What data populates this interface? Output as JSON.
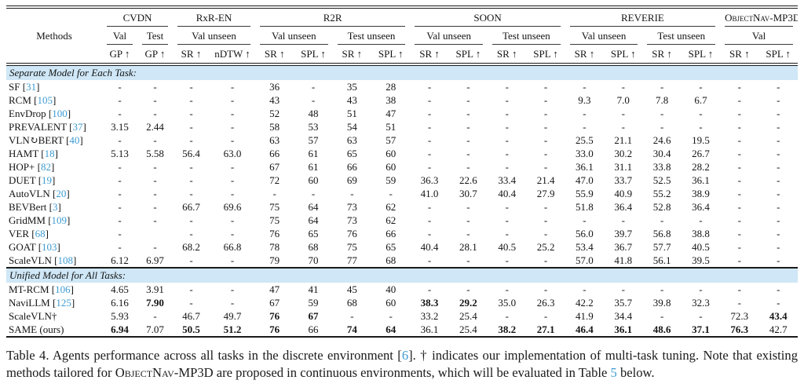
{
  "colors": {
    "citation": "#3d9bd2",
    "section_bg": "#cfe7f6",
    "rule": "#1a1a1a"
  },
  "table": {
    "methods_label": "Methods",
    "groups": [
      {
        "label": "CVDN",
        "colspan": 2,
        "smallcaps": false
      },
      {
        "label": "RxR-EN",
        "colspan": 2,
        "smallcaps": false
      },
      {
        "label": "R2R",
        "colspan": 4,
        "smallcaps": false
      },
      {
        "label": "SOON",
        "colspan": 4,
        "smallcaps": false
      },
      {
        "label": "REVERIE",
        "colspan": 4,
        "smallcaps": false
      },
      {
        "label": "ObjectNav-MP3D",
        "colspan": 2,
        "smallcaps": true
      }
    ],
    "splits": [
      {
        "label": "Val",
        "colspan": 1
      },
      {
        "label": "Test",
        "colspan": 1
      },
      {
        "label": "Val unseen",
        "colspan": 2
      },
      {
        "label": "Val unseen",
        "colspan": 2
      },
      {
        "label": "Test unseen",
        "colspan": 2
      },
      {
        "label": "Val unseen",
        "colspan": 2
      },
      {
        "label": "Test unseen",
        "colspan": 2
      },
      {
        "label": "Val unseen",
        "colspan": 2
      },
      {
        "label": "Test unseen",
        "colspan": 2
      },
      {
        "label": "Val",
        "colspan": 2
      }
    ],
    "metrics": [
      "GP ↑",
      "GP ↑",
      "SR ↑",
      "nDTW ↑",
      "SR ↑",
      "SPL ↑",
      "SR ↑",
      "SPL ↑",
      "SR ↑",
      "SPL ↑",
      "SR ↑",
      "SPL ↑",
      "SR ↑",
      "SPL ↑",
      "SR ↑",
      "SPL ↑",
      "SR ↑",
      "SPL ↑"
    ],
    "sections": [
      {
        "title": "Separate Model for Each Task:",
        "rows": [
          {
            "method": "SF",
            "ref": "31",
            "bold": [],
            "values": [
              "-",
              "-",
              "-",
              "-",
              "36",
              "-",
              "35",
              "28",
              "-",
              "-",
              "-",
              "-",
              "-",
              "-",
              "-",
              "-",
              "-",
              "-"
            ]
          },
          {
            "method": "RCM",
            "ref": "105",
            "bold": [],
            "values": [
              "-",
              "-",
              "-",
              "-",
              "43",
              "-",
              "43",
              "38",
              "-",
              "-",
              "-",
              "-",
              "9.3",
              "7.0",
              "7.8",
              "6.7",
              "-",
              "-"
            ]
          },
          {
            "method": "EnvDrop",
            "ref": "100",
            "bold": [],
            "values": [
              "-",
              "-",
              "-",
              "-",
              "52",
              "48",
              "51",
              "47",
              "-",
              "-",
              "-",
              "-",
              "-",
              "-",
              "-",
              "-",
              "-",
              "-"
            ]
          },
          {
            "method": "PREVALENT",
            "ref": "37",
            "bold": [],
            "values": [
              "3.15",
              "2.44",
              "-",
              "-",
              "58",
              "53",
              "54",
              "51",
              "-",
              "-",
              "-",
              "-",
              "-",
              "-",
              "-",
              "-",
              "-",
              "-"
            ]
          },
          {
            "method": "VLN↻BERT",
            "ref": "40",
            "bold": [],
            "values": [
              "-",
              "-",
              "-",
              "-",
              "63",
              "57",
              "63",
              "57",
              "-",
              "-",
              "-",
              "-",
              "25.5",
              "21.1",
              "24.6",
              "19.5",
              "-",
              "-"
            ]
          },
          {
            "method": "HAMT",
            "ref": "18",
            "bold": [],
            "values": [
              "5.13",
              "5.58",
              "56.4",
              "63.0",
              "66",
              "61",
              "65",
              "60",
              "-",
              "-",
              "-",
              "-",
              "33.0",
              "30.2",
              "30.4",
              "26.7",
              "-",
              "-"
            ]
          },
          {
            "method": "HOP+",
            "ref": "82",
            "bold": [],
            "values": [
              "-",
              "-",
              "-",
              "-",
              "67",
              "61",
              "66",
              "60",
              "-",
              "-",
              "-",
              "-",
              "36.1",
              "31.1",
              "33.8",
              "28.2",
              "-",
              "-"
            ]
          },
          {
            "method": "DUET",
            "ref": "19",
            "bold": [],
            "values": [
              "-",
              "-",
              "-",
              "-",
              "72",
              "60",
              "69",
              "59",
              "36.3",
              "22.6",
              "33.4",
              "21.4",
              "47.0",
              "33.7",
              "52.5",
              "36.1",
              "-",
              "-"
            ]
          },
          {
            "method": "AutoVLN",
            "ref": "20",
            "bold": [],
            "values": [
              "-",
              "-",
              "-",
              "-",
              "-",
              "-",
              "-",
              "-",
              "41.0",
              "30.7",
              "40.4",
              "27.9",
              "55.9",
              "40.9",
              "55.2",
              "38.9",
              "-",
              "-"
            ]
          },
          {
            "method": "BEVBert",
            "ref": "3",
            "bold": [],
            "values": [
              "-",
              "-",
              "66.7",
              "69.6",
              "75",
              "64",
              "73",
              "62",
              "-",
              "-",
              "-",
              "-",
              "51.8",
              "36.4",
              "52.8",
              "36.4",
              "-",
              "-"
            ]
          },
          {
            "method": "GridMM",
            "ref": "109",
            "bold": [],
            "values": [
              "-",
              "-",
              "-",
              "-",
              "75",
              "64",
              "73",
              "62",
              "-",
              "-",
              "-",
              "-",
              "-",
              "-",
              "-",
              "-",
              "-",
              "-"
            ]
          },
          {
            "method": "VER",
            "ref": "68",
            "bold": [],
            "values": [
              "-",
              "",
              "-",
              "-",
              "76",
              "65",
              "76",
              "66",
              "-",
              "-",
              "-",
              "-",
              "56.0",
              "39.7",
              "56.8",
              "38.8",
              "-",
              "-"
            ]
          },
          {
            "method": "GOAT",
            "ref": "103",
            "bold": [],
            "values": [
              "-",
              "-",
              "68.2",
              "66.8",
              "78",
              "68",
              "75",
              "65",
              "40.4",
              "28.1",
              "40.5",
              "25.2",
              "53.4",
              "36.7",
              "57.7",
              "40.5",
              "-",
              "-"
            ]
          },
          {
            "method": "ScaleVLN",
            "ref": "108",
            "bold": [],
            "values": [
              "6.12",
              "6.97",
              "-",
              "-",
              "79",
              "70",
              "77",
              "68",
              "-",
              "-",
              "-",
              "-",
              "57.0",
              "41.8",
              "56.1",
              "39.5",
              "-",
              "-"
            ]
          }
        ]
      },
      {
        "title": "Unified Model for All Tasks:",
        "rows": [
          {
            "method": "MT-RCM",
            "ref": "106",
            "bold": [],
            "values": [
              "4.65",
              "3.91",
              "-",
              "-",
              "47",
              "41",
              "45",
              "40",
              "-",
              "-",
              "-",
              "-",
              "-",
              "-",
              "-",
              "-",
              "-",
              "-"
            ]
          },
          {
            "method": "NaviLLM",
            "ref": "125",
            "bold": [
              1,
              8,
              9
            ],
            "values": [
              "6.16",
              "7.90",
              "-",
              "-",
              "67",
              "59",
              "68",
              "60",
              "38.3",
              "29.2",
              "35.0",
              "26.3",
              "42.2",
              "35.7",
              "39.8",
              "32.3",
              "-",
              "-"
            ]
          },
          {
            "method": "ScaleVLN†",
            "ref": "",
            "bold": [
              4,
              5,
              17
            ],
            "values": [
              "5.93",
              "-",
              "46.7",
              "49.7",
              "76",
              "67",
              "-",
              "-",
              "33.2",
              "25.4",
              "-",
              "-",
              "41.9",
              "34.4",
              "-",
              "-",
              "72.3",
              "43.4"
            ]
          },
          {
            "method": "SAME (ours)",
            "ref": "",
            "bold": [
              0,
              2,
              3,
              4,
              6,
              7,
              10,
              11,
              12,
              13,
              14,
              15,
              16
            ],
            "values": [
              "6.94",
              "7.07",
              "50.5",
              "51.2",
              "76",
              "66",
              "74",
              "64",
              "36.1",
              "25.4",
              "38.2",
              "27.1",
              "46.4",
              "36.1",
              "48.6",
              "37.1",
              "76.3",
              "42.7"
            ]
          }
        ]
      }
    ]
  },
  "caption": {
    "part1": "Table 4.  Agents performance across all tasks in the discrete environment [",
    "ref1": "6",
    "part2": "]. † indicates our implementation of multi-task tuning. Note that existing methods tailored for ",
    "smallcaps": "ObjectNav-MP3D",
    "part3": " are proposed in continuous environments, which will be evaluated in Table ",
    "ref2": "5",
    "part4": " below."
  }
}
